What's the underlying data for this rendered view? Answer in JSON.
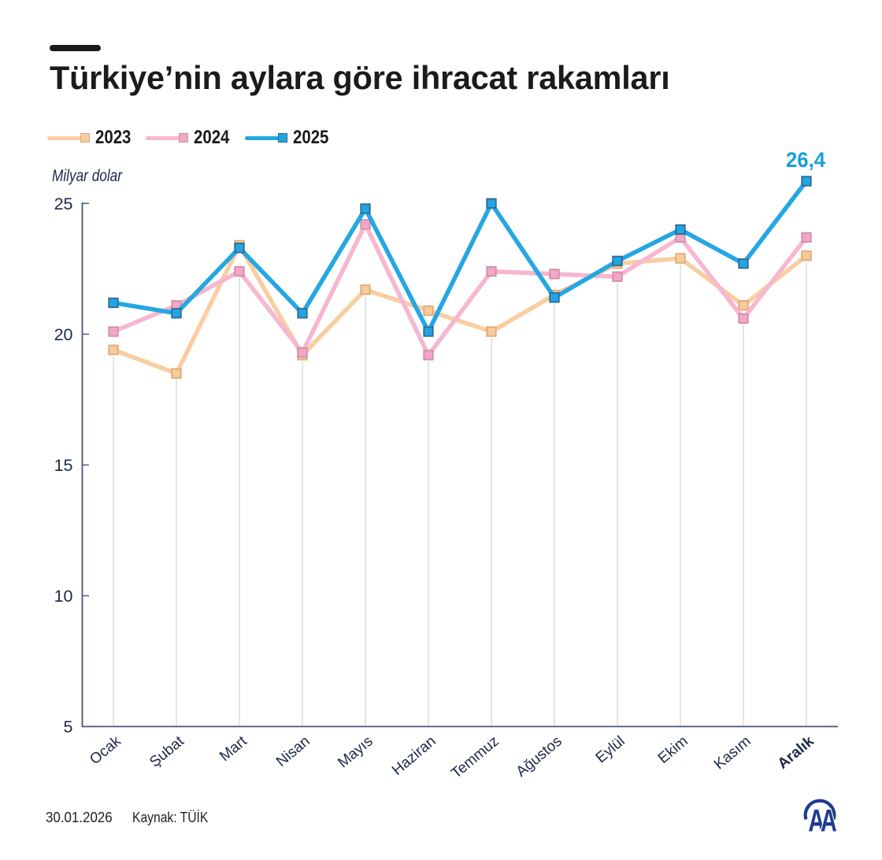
{
  "header": {
    "title": "Türkiye’nin aylara göre ihracat rakamları"
  },
  "chart": {
    "unit_label": "Milyar dolar"
  },
  "chart_data": {
    "type": "line",
    "title": "Türkiye’nin aylara göre ihracat rakamları",
    "ylabel": "Milyar dolar",
    "xlabel": "",
    "categories": [
      "Ocak",
      "Şubat",
      "Mart",
      "Nisan",
      "Mayıs",
      "Haziran",
      "Temmuz",
      "Ağustos",
      "Eylül",
      "Ekim",
      "Kasım",
      "Aralık"
    ],
    "series": [
      {
        "name": "2023",
        "values": [
          19.4,
          18.5,
          23.4,
          19.2,
          21.7,
          20.9,
          20.1,
          21.5,
          22.7,
          22.9,
          21.1,
          23.0
        ],
        "line_color": "#F8CEA2",
        "marker_fill": "#F8CB9D",
        "marker_border": "#DFAA74"
      },
      {
        "name": "2024",
        "values": [
          20.1,
          21.1,
          22.4,
          19.3,
          24.2,
          19.2,
          22.4,
          22.3,
          22.2,
          23.7,
          20.6,
          23.7
        ],
        "line_color": "#F7B7D0",
        "marker_fill": "#F3A7C6",
        "marker_border": "#CF8FA9"
      },
      {
        "name": "2025",
        "values": [
          21.2,
          20.8,
          23.3,
          20.8,
          24.8,
          20.1,
          25.0,
          21.4,
          22.8,
          24.0,
          22.7,
          26.4
        ],
        "line_color": "#25A7E2",
        "marker_fill": "#22A5E2",
        "marker_border": "#2E6A94"
      }
    ],
    "ylim": [
      5,
      25
    ],
    "y_tick_values": [
      25,
      20,
      15,
      10,
      5
    ],
    "grid": "vertical-drop-lines",
    "legend_position": "top-left",
    "highlight_category": "Aralık",
    "annotation": {
      "text": "26,4",
      "series": "2025",
      "category": "Aralık",
      "color": "#14A1DD"
    }
  },
  "footer": {
    "date": "30.01.2026",
    "source": "Kaynak: TÜİK",
    "logo": "AA",
    "logo_color": "#1E3B8F"
  }
}
